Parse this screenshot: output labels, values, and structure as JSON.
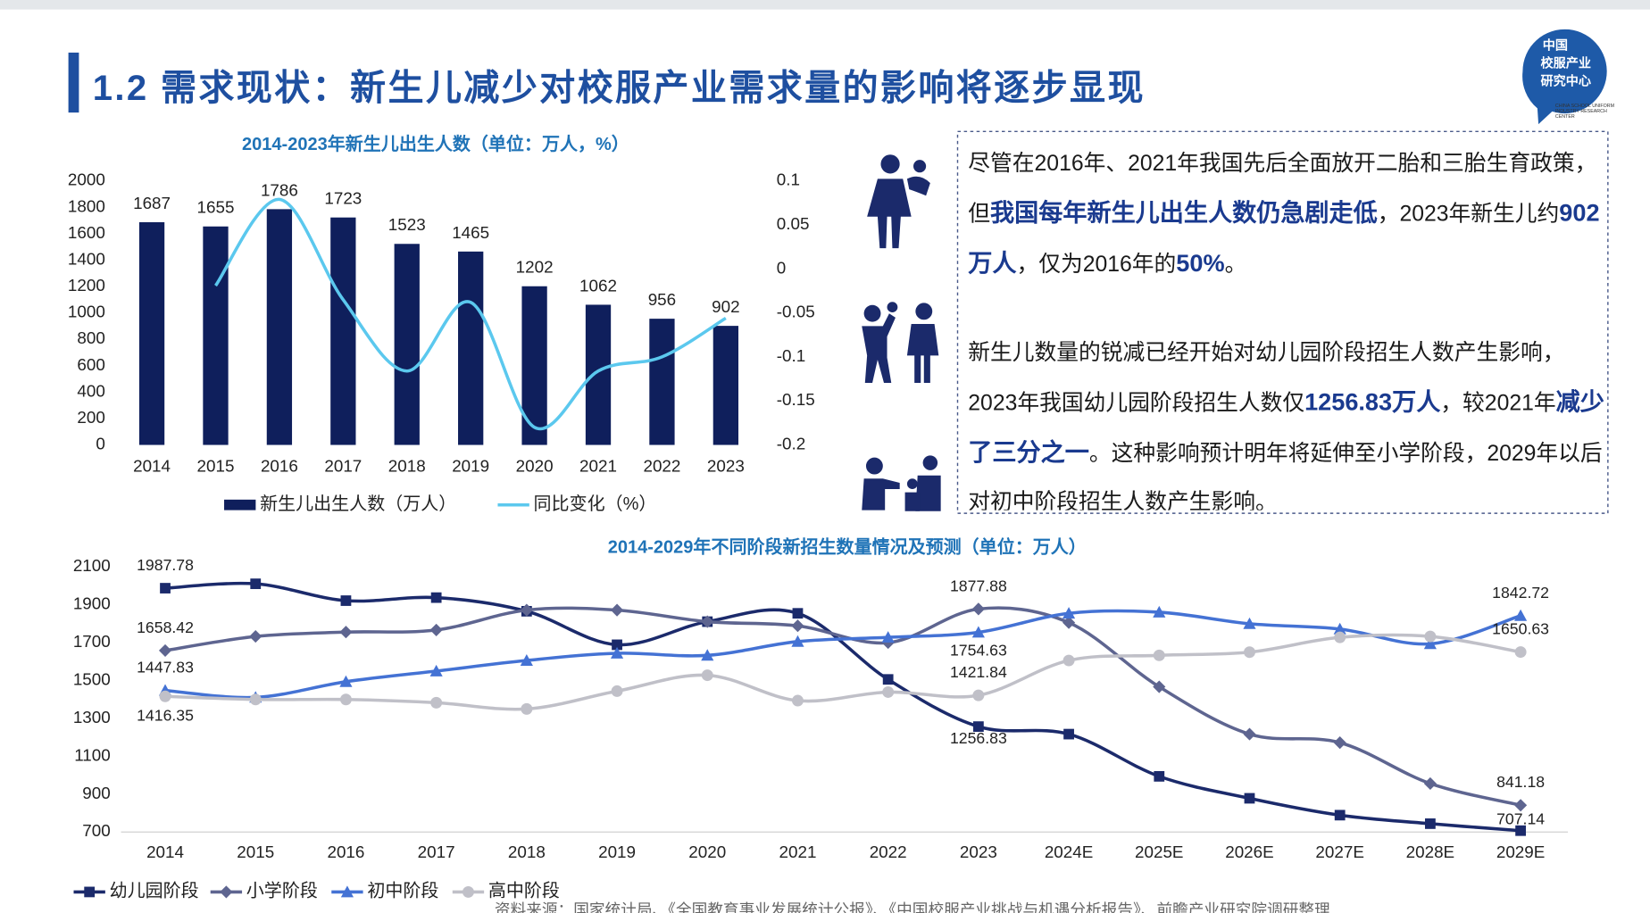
{
  "header": {
    "title": "1.2  需求现状：新生儿减少对校服产业需求量的影响将逐步显现"
  },
  "logo": {
    "lines": [
      "中国",
      "校服产业",
      "研究中心"
    ],
    "subtitle": "CHINA SCHOOL UNIFORM INDUSTRY RESEARCH CENTER"
  },
  "text_box": {
    "paragraphs": [
      [
        {
          "text": "尽管在2016年、2021年我国先后全面放开二胎和三胎生育政策，但",
          "bold": false
        },
        {
          "text": "我国每年新生儿出生人数仍急剧走低",
          "bold": true
        },
        {
          "text": "，2023年新生儿约",
          "bold": false
        },
        {
          "text": "902万人",
          "bold": true
        },
        {
          "text": "，仅为2016年的",
          "bold": false
        },
        {
          "text": "50%",
          "bold": true
        },
        {
          "text": "。",
          "bold": false
        }
      ],
      [
        {
          "text": "新生儿数量的锐减已经开始对幼儿园阶段招生人数产生影响，2023年我国幼儿园阶段招生人数仅",
          "bold": false
        },
        {
          "text": "1256.83万人",
          "bold": true
        },
        {
          "text": "，较2021年",
          "bold": false
        },
        {
          "text": "减少了三分之一",
          "bold": true
        },
        {
          "text": "。这种影响预计明年将延伸至小学阶段，2029年以后对初中阶段招生人数产生影响。",
          "bold": false
        }
      ]
    ]
  },
  "chart_data": [
    {
      "type": "combo",
      "title": "2014-2023年新生儿出生人数（单位：万人，%）",
      "categories": [
        "2014",
        "2015",
        "2016",
        "2017",
        "2018",
        "2019",
        "2020",
        "2021",
        "2022",
        "2023"
      ],
      "series": [
        {
          "name": "新生儿出生人数（万人）",
          "type": "bar",
          "color": "#0f1f5c",
          "values": [
            1687,
            1655,
            1786,
            1723,
            1523,
            1465,
            1202,
            1062,
            956,
            902
          ]
        },
        {
          "name": "同比变化（%）",
          "type": "line",
          "axis": "y2",
          "color": "#5bc8ee",
          "values": [
            null,
            -0.019,
            0.079,
            -0.035,
            -0.116,
            -0.038,
            -0.18,
            -0.116,
            -0.1,
            -0.056
          ]
        }
      ],
      "ylim": [
        0,
        2000
      ],
      "yticks": [
        0,
        200,
        400,
        600,
        800,
        1000,
        1200,
        1400,
        1600,
        1800,
        2000
      ],
      "y2lim": [
        -0.2,
        0.1
      ],
      "y2ticks": [
        0.1,
        0.05,
        0,
        -0.05,
        -0.1,
        -0.15,
        -0.2
      ]
    },
    {
      "type": "line",
      "title": "2014-2029年不同阶段新招生数量情况及预测（单位：万人）",
      "categories": [
        "2014",
        "2015",
        "2016",
        "2017",
        "2018",
        "2019",
        "2020",
        "2021",
        "2022",
        "2023",
        "2024E",
        "2025E",
        "2026E",
        "2027E",
        "2028E",
        "2029E"
      ],
      "series": [
        {
          "name": "幼儿园阶段",
          "color": "#1b2a6b",
          "marker": "square",
          "values": [
            1987.78,
            2011,
            1922,
            1938,
            1866,
            1689,
            1811,
            1855,
            1506,
            1256.83,
            1217,
            994,
            878,
            789,
            744,
            707.14
          ],
          "value_labels": [
            "1987.78",
            null,
            null,
            null,
            null,
            null,
            null,
            null,
            null,
            "1256.83",
            null,
            null,
            null,
            null,
            null,
            "707.14"
          ]
        },
        {
          "name": "小学阶段",
          "color": "#5e6590",
          "marker": "diamond",
          "values": [
            1658.42,
            1733,
            1756,
            1767,
            1872,
            1872,
            1811,
            1789,
            1700,
            1877.88,
            1806,
            1467,
            1217,
            1172,
            956,
            841.18
          ],
          "value_labels": [
            "1658.42",
            null,
            null,
            null,
            null,
            null,
            null,
            null,
            null,
            "1877.88",
            null,
            null,
            null,
            null,
            null,
            "841.18"
          ]
        },
        {
          "name": "初中阶段",
          "color": "#4472d4",
          "marker": "triangle",
          "values": [
            1447.83,
            1411,
            1494,
            1550,
            1606,
            1644,
            1633,
            1706,
            1728,
            1754.63,
            1855,
            1861,
            1800,
            1772,
            1694,
            1842.72
          ],
          "value_labels": [
            "1447.83",
            null,
            null,
            null,
            null,
            null,
            null,
            null,
            null,
            "1754.63",
            null,
            null,
            null,
            null,
            null,
            "1842.72"
          ]
        },
        {
          "name": "高中阶段",
          "color": "#c0c0c8",
          "marker": "circle",
          "values": [
            1416.35,
            1400,
            1400,
            1383,
            1350,
            1444,
            1528,
            1394,
            1439,
            1421.84,
            1606,
            1633,
            1650,
            1728,
            1733,
            1650.63
          ],
          "value_labels": [
            "1416.35",
            null,
            null,
            null,
            null,
            null,
            null,
            null,
            null,
            "1421.84",
            null,
            null,
            null,
            null,
            null,
            "1650.63"
          ]
        }
      ],
      "ylim": [
        700,
        2100
      ],
      "yticks": [
        700,
        900,
        1100,
        1300,
        1500,
        1700,
        1900,
        2100
      ]
    }
  ],
  "source": "资料来源：国家统计局、《全国教育事业发展统计公报》、《中国校服产业挑战与机遇分析报告》、前瞻产业研究院调研整理"
}
